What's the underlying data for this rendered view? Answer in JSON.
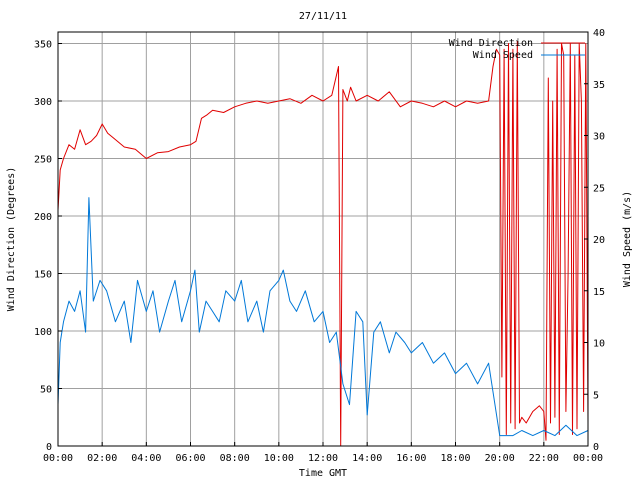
{
  "chart_data": {
    "type": "line",
    "title": "27/11/11",
    "xlabel": "Time GMT",
    "ylabel_left": "Wind Direction (Degrees)",
    "ylabel_right": "Wind Speed (m/s)",
    "xlim": [
      0,
      24
    ],
    "ylim_left": [
      0,
      360
    ],
    "ylim_right": [
      0,
      40
    ],
    "x_ticks": [
      0,
      2,
      4,
      6,
      8,
      10,
      12,
      14,
      16,
      18,
      20,
      22,
      24
    ],
    "x_tick_labels": [
      "00:00",
      "02:00",
      "04:00",
      "06:00",
      "08:00",
      "10:00",
      "12:00",
      "14:00",
      "16:00",
      "18:00",
      "20:00",
      "22:00",
      "00:00"
    ],
    "y_left_ticks": [
      0,
      50,
      100,
      150,
      200,
      250,
      300,
      350
    ],
    "y_left_tick_labels": [
      "0",
      "50",
      "100",
      "150",
      "200",
      "250",
      "300",
      "350"
    ],
    "y_right_ticks": [
      0,
      5,
      10,
      15,
      20,
      25,
      30,
      35,
      40
    ],
    "y_right_tick_labels": [
      "0",
      "5",
      "10",
      "15",
      "20",
      "25",
      "30",
      "35",
      "40"
    ],
    "grid": true,
    "legend_position": "top-right",
    "series": [
      {
        "name": "Wind Direction",
        "axis": "left",
        "color": "#e00000",
        "x": [
          0,
          0.1,
          0.25,
          0.5,
          0.75,
          1.0,
          1.25,
          1.5,
          1.75,
          2.0,
          2.25,
          2.5,
          3.0,
          3.5,
          4.0,
          4.5,
          5.0,
          5.5,
          6.0,
          6.25,
          6.5,
          6.75,
          7.0,
          7.5,
          8.0,
          8.5,
          9.0,
          9.5,
          10.0,
          10.5,
          11.0,
          11.5,
          12.0,
          12.4,
          12.7,
          12.8,
          12.9,
          13.0,
          13.1,
          13.25,
          13.5,
          14.0,
          14.5,
          15.0,
          15.5,
          16.0,
          16.5,
          17.0,
          17.5,
          18.0,
          18.5,
          19.0,
          19.5,
          19.7,
          19.85,
          20.0,
          20.1,
          20.2,
          20.3,
          20.4,
          20.5,
          20.6,
          20.7,
          20.8,
          20.9,
          21.0,
          21.2,
          21.5,
          21.8,
          22.0,
          22.1,
          22.2,
          22.3,
          22.4,
          22.5,
          22.6,
          22.7,
          22.8,
          22.9,
          23.0,
          23.1,
          23.2,
          23.3,
          23.4,
          23.5,
          23.6,
          23.7,
          23.8,
          23.9,
          24.0
        ],
        "values": [
          205,
          240,
          250,
          262,
          258,
          275,
          262,
          265,
          270,
          280,
          272,
          268,
          260,
          258,
          250,
          255,
          256,
          260,
          262,
          265,
          285,
          288,
          292,
          290,
          295,
          298,
          300,
          298,
          300,
          302,
          298,
          305,
          300,
          305,
          330,
          0,
          310,
          305,
          300,
          312,
          300,
          305,
          300,
          308,
          295,
          300,
          298,
          295,
          300,
          295,
          300,
          298,
          300,
          330,
          345,
          340,
          60,
          345,
          10,
          350,
          20,
          345,
          15,
          352,
          20,
          25,
          20,
          30,
          35,
          30,
          5,
          320,
          20,
          300,
          25,
          345,
          10,
          350,
          340,
          30,
          150,
          350,
          10,
          340,
          15,
          350,
          300,
          30,
          350,
          20
        ]
      },
      {
        "name": "Wind Speed",
        "axis": "right",
        "color": "#0078d8",
        "x": [
          0,
          0.1,
          0.25,
          0.5,
          0.75,
          1.0,
          1.25,
          1.4,
          1.6,
          1.9,
          2.2,
          2.6,
          3.0,
          3.3,
          3.6,
          4.0,
          4.3,
          4.6,
          5.0,
          5.3,
          5.6,
          6.0,
          6.2,
          6.4,
          6.7,
          7.0,
          7.3,
          7.6,
          8.0,
          8.3,
          8.6,
          9.0,
          9.3,
          9.6,
          10.0,
          10.2,
          10.5,
          10.8,
          11.2,
          11.6,
          12.0,
          12.3,
          12.6,
          12.9,
          13.2,
          13.5,
          13.8,
          14.0,
          14.3,
          14.6,
          15.0,
          15.3,
          15.7,
          16.0,
          16.5,
          17.0,
          17.5,
          18.0,
          18.5,
          19.0,
          19.5,
          20.0,
          20.3,
          20.6,
          21.0,
          21.5,
          22.0,
          22.5,
          23.0,
          23.5,
          24.0
        ],
        "values": [
          4,
          10,
          12,
          14,
          13,
          15,
          11,
          24,
          14,
          16,
          15,
          12,
          14,
          10,
          16,
          13,
          15,
          11,
          14,
          16,
          12,
          15,
          17,
          11,
          14,
          13,
          12,
          15,
          14,
          16,
          12,
          14,
          11,
          15,
          16,
          17,
          14,
          13,
          15,
          12,
          13,
          10,
          11,
          6,
          4,
          13,
          12,
          3,
          11,
          12,
          9,
          11,
          10,
          9,
          10,
          8,
          9,
          7,
          8,
          6,
          8,
          1,
          1,
          1,
          1.5,
          1,
          1.5,
          1,
          2,
          1,
          1.5
        ]
      }
    ]
  }
}
